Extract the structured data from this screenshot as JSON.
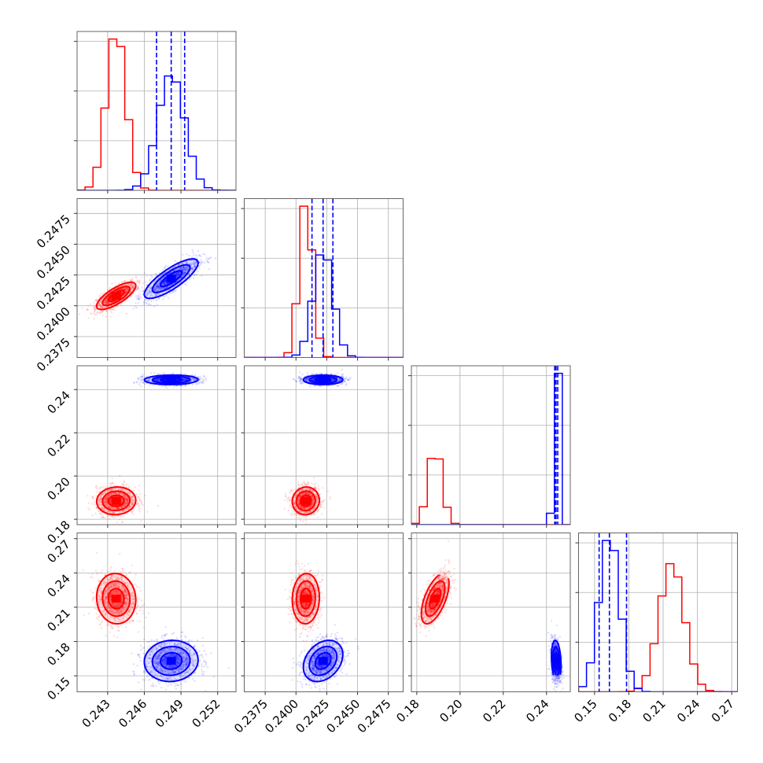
{
  "chart_data": {
    "type": "corner",
    "title": "",
    "colors": {
      "red": "#ff0000",
      "blue": "#0000ff"
    },
    "series": [
      {
        "color": "red",
        "medians": [
          0.2437,
          0.2408,
          0.1885,
          0.2175
        ],
        "sigmas": [
          0.0008,
          0.00055,
          0.0032,
          0.011
        ],
        "correlations": [
          [
            0,
            1,
            0.75
          ],
          [
            0,
            2,
            0.05
          ],
          [
            0,
            3,
            -0.05
          ],
          [
            1,
            2,
            0.05
          ],
          [
            1,
            3,
            0.05
          ],
          [
            2,
            3,
            0.6
          ]
        ]
      },
      {
        "color": "blue",
        "medians": [
          0.2482,
          0.2422,
          0.2445,
          0.163
        ],
        "sigmas": [
          0.0011,
          0.0008,
          0.0011,
          0.009
        ],
        "correlations": [
          [
            0,
            1,
            0.8
          ],
          [
            0,
            2,
            0.05
          ],
          [
            0,
            3,
            0.05
          ],
          [
            1,
            2,
            0.0
          ],
          [
            1,
            3,
            0.3
          ],
          [
            2,
            3,
            -0.2
          ]
        ]
      }
    ],
    "quantile_lines": {
      "color": "blue",
      "style": "dashed",
      "values": [
        [
          0.247,
          0.2482,
          0.2493
        ],
        [
          0.2413,
          0.2422,
          0.243
        ],
        [
          0.2438,
          0.2444,
          0.2452
        ],
        [
          0.154,
          0.163,
          0.178
        ]
      ]
    },
    "parameters": [
      {
        "range": [
          0.2405,
          0.2535
        ],
        "ticks": [
          "0.243",
          "0.246",
          "0.249",
          "0.252"
        ]
      },
      {
        "range": [
          0.2358,
          0.2487
        ],
        "ticks": [
          "0.2375",
          "0.2400",
          "0.2425",
          "0.2450",
          "0.2475"
        ]
      },
      {
        "range": [
          0.1775,
          0.251
        ],
        "ticks": [
          "0.18",
          "0.20",
          "0.22",
          "0.24"
        ]
      },
      {
        "range": [
          0.136,
          0.275
        ],
        "ticks": [
          "0.15",
          "0.18",
          "0.21",
          "0.24",
          "0.27"
        ]
      }
    ],
    "grid": true,
    "legend": "none"
  }
}
